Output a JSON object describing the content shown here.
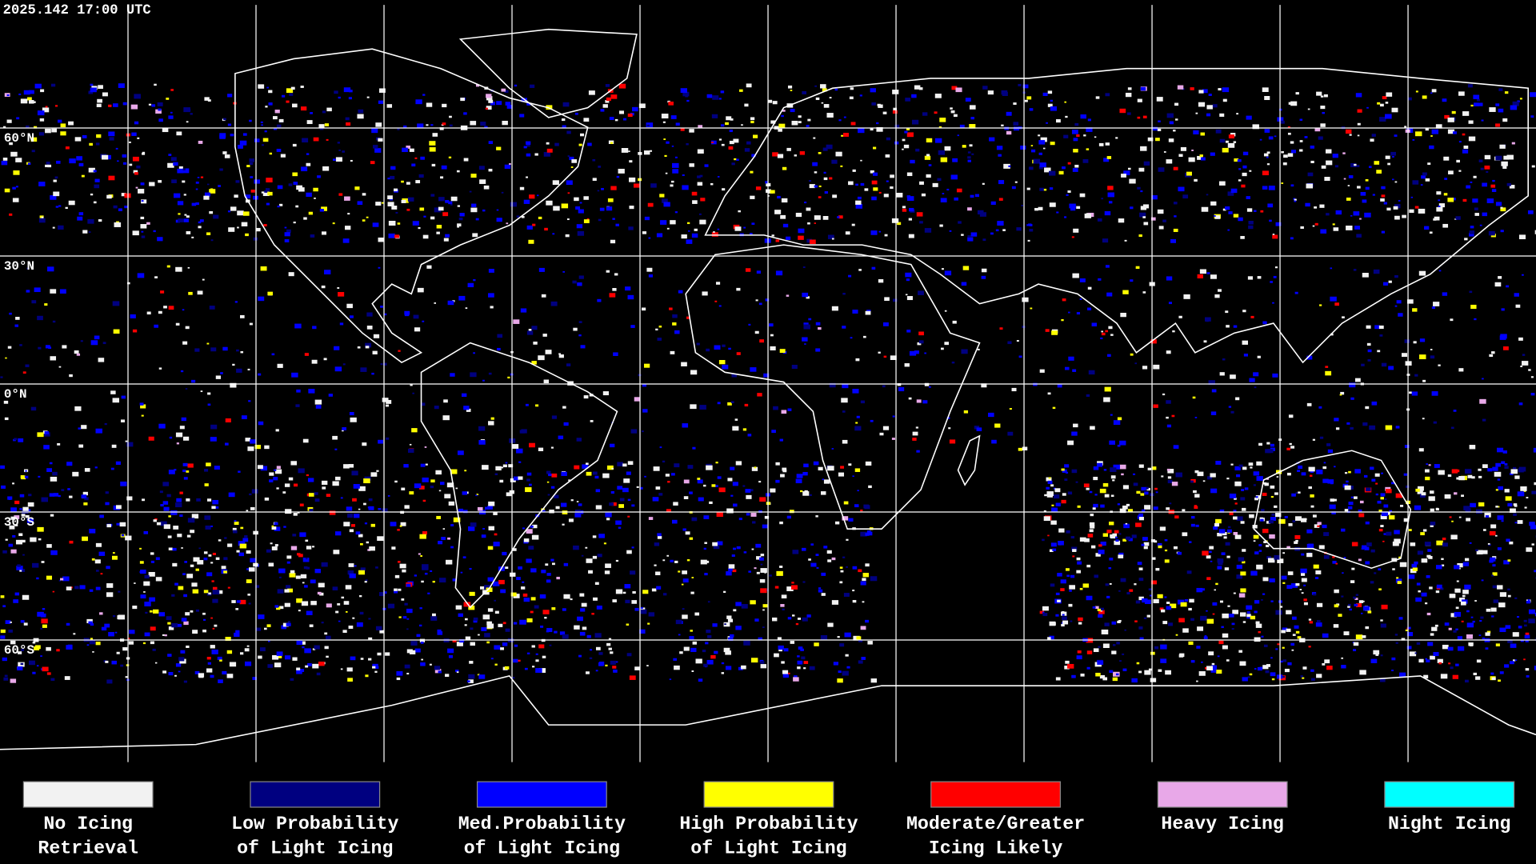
{
  "header": {
    "timestamp": "2025.142 17:00 UTC"
  },
  "map": {
    "latitude_labels": [
      "60°N",
      "30°N",
      "0°N",
      "30°S",
      "60°S"
    ]
  },
  "legend": {
    "items": [
      {
        "lines": [
          "No Icing",
          "Retrieval"
        ],
        "color": "#f2f2f2"
      },
      {
        "lines": [
          "Low Probability",
          "of Light Icing"
        ],
        "color": "#000080"
      },
      {
        "lines": [
          "Med.Probability",
          "of Light Icing"
        ],
        "color": "#0000ff"
      },
      {
        "lines": [
          "High Probability",
          "of Light Icing"
        ],
        "color": "#ffff00"
      },
      {
        "lines": [
          "Moderate/Greater",
          "Icing Likely"
        ],
        "color": "#ff0000"
      },
      {
        "lines": [
          "Heavy Icing"
        ],
        "color": "#e8a8e8"
      },
      {
        "lines": [
          "Night Icing"
        ],
        "color": "#00ffff"
      }
    ]
  }
}
